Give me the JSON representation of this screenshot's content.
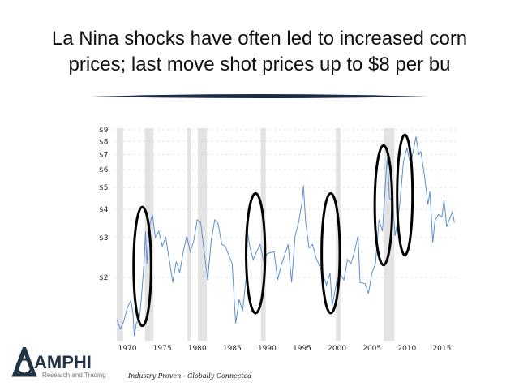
{
  "slide": {
    "title_line1": "La Nina shocks have often led to  increased corn",
    "title_line2": "prices; last move shot prices up to $8 per bu",
    "tagline": "Industry Proven - Globally Connected",
    "logo_text": "AMPHI",
    "logo_subtext": "Research and Trading",
    "colors": {
      "title": "#111111",
      "swoosh": "#1b2a4a",
      "logo": "#1f3344"
    }
  },
  "chart_data": {
    "type": "line",
    "title": "",
    "xlabel": "",
    "ylabel": "",
    "y_scale": "log",
    "xlim": [
      1968.5,
      2016.9
    ],
    "ylim": [
      1.05,
      9
    ],
    "x_ticks": [
      1970,
      1975,
      1980,
      1985,
      1990,
      1995,
      2000,
      2005,
      2010,
      2015
    ],
    "x_tick_labels": [
      "1970",
      "1975",
      "1980",
      "1985",
      "1990",
      "1995",
      "2000",
      "2005",
      "2010",
      "2015"
    ],
    "y_ticks": [
      2,
      3,
      4,
      5,
      6,
      7,
      8,
      9
    ],
    "y_tick_labels": [
      "$2",
      "$3",
      "$4",
      "$5",
      "$6",
      "$7",
      "$8",
      "$9"
    ],
    "grid": "horizontal dashed",
    "series_color": "#5b8fd0",
    "shade_color": "#e3e3e3",
    "ellipse_color": "#000000",
    "shaded_periods": [
      [
        1968.5,
        1969.4
      ],
      [
        1972.5,
        1973.75
      ],
      [
        1978.6,
        1979.05
      ],
      [
        1980.1,
        1981.4
      ],
      [
        1989.1,
        1989.8
      ],
      [
        1999.8,
        2000.5
      ],
      [
        2006.7,
        2008.2
      ]
    ],
    "highlight_ellipses": [
      {
        "x": [
          1970.9,
          1973.4
        ],
        "y": [
          1.22,
          4.1
        ]
      },
      {
        "x": [
          1987.0,
          1989.7
        ],
        "y": [
          1.39,
          4.71
        ]
      },
      {
        "x": [
          1997.8,
          2000.4
        ],
        "y": [
          1.39,
          4.71
        ]
      },
      {
        "x": [
          2005.4,
          2007.9
        ],
        "y": [
          2.27,
          7.67
        ]
      },
      {
        "x": [
          2008.6,
          2010.8
        ],
        "y": [
          2.51,
          8.56
        ]
      }
    ],
    "series": [
      {
        "x": [
          1968.5,
          1969,
          1969.5,
          1970,
          1970.5,
          1970.8,
          1971,
          1971.3,
          1971.7,
          1972,
          1972.4,
          1972.6,
          1972.8,
          1973,
          1973.3,
          1973.6,
          1974,
          1974.5,
          1975,
          1975.5,
          1976,
          1976.5,
          1977,
          1977.5,
          1978,
          1978.5,
          1979,
          1979.5,
          1980,
          1980.5,
          1981,
          1981.5,
          1982,
          1982.5,
          1983,
          1983.5,
          1984,
          1985,
          1985.5,
          1986,
          1986.5,
          1987,
          1987.2,
          1987.5,
          1988,
          1988.5,
          1989,
          1989.5,
          1990,
          1991,
          1991.5,
          1992,
          1993,
          1993.5,
          1994,
          1994.5,
          1995,
          1995.2,
          1995.5,
          1996,
          1996.5,
          1997,
          1998,
          1998.5,
          1999,
          1999.3,
          2000,
          2000.5,
          2001,
          2001.5,
          2002,
          2002.5,
          2003,
          2003.3,
          2004,
          2004.5,
          2005,
          2005.5,
          2006,
          2006.5,
          2007,
          2007.2,
          2007.5,
          2008,
          2008.3,
          2008.7,
          2009,
          2009.5,
          2010,
          2010.5,
          2011,
          2011.3,
          2011.7,
          2012,
          2012.5,
          2013,
          2013.3,
          2013.7,
          2014,
          2014.5,
          2015,
          2015.3,
          2015.7,
          2016,
          2016.5,
          2016.8
        ],
        "y": [
          1.3,
          1.18,
          1.28,
          1.47,
          1.58,
          1.4,
          1.1,
          1.26,
          1.3,
          1.6,
          2.35,
          3.2,
          2.3,
          3.0,
          3.5,
          3.8,
          3.0,
          3.2,
          2.75,
          3.0,
          2.4,
          1.9,
          2.35,
          2.1,
          2.6,
          3.05,
          2.6,
          2.9,
          3.6,
          3.5,
          2.6,
          1.95,
          2.9,
          3.6,
          3.45,
          2.8,
          2.75,
          2.3,
          1.25,
          1.6,
          1.42,
          2.0,
          3.15,
          2.75,
          2.4,
          2.6,
          2.8,
          2.35,
          2.55,
          2.6,
          1.95,
          2.25,
          2.8,
          1.9,
          3.05,
          3.5,
          4.3,
          5.1,
          3.55,
          2.7,
          2.8,
          2.45,
          2.05,
          1.85,
          2.1,
          1.5,
          1.95,
          2.05,
          1.95,
          2.4,
          2.3,
          2.6,
          3.05,
          1.9,
          1.88,
          1.7,
          2.1,
          2.3,
          3.6,
          3.2,
          5.6,
          6.8,
          4.5,
          4.3,
          3.05,
          3.6,
          4.3,
          6.5,
          7.5,
          6.3,
          7.5,
          8.4,
          7.0,
          7.2,
          5.7,
          4.2,
          4.8,
          2.85,
          3.55,
          3.8,
          3.7,
          4.4,
          3.35,
          3.55,
          3.9,
          3.5
        ]
      }
    ]
  }
}
